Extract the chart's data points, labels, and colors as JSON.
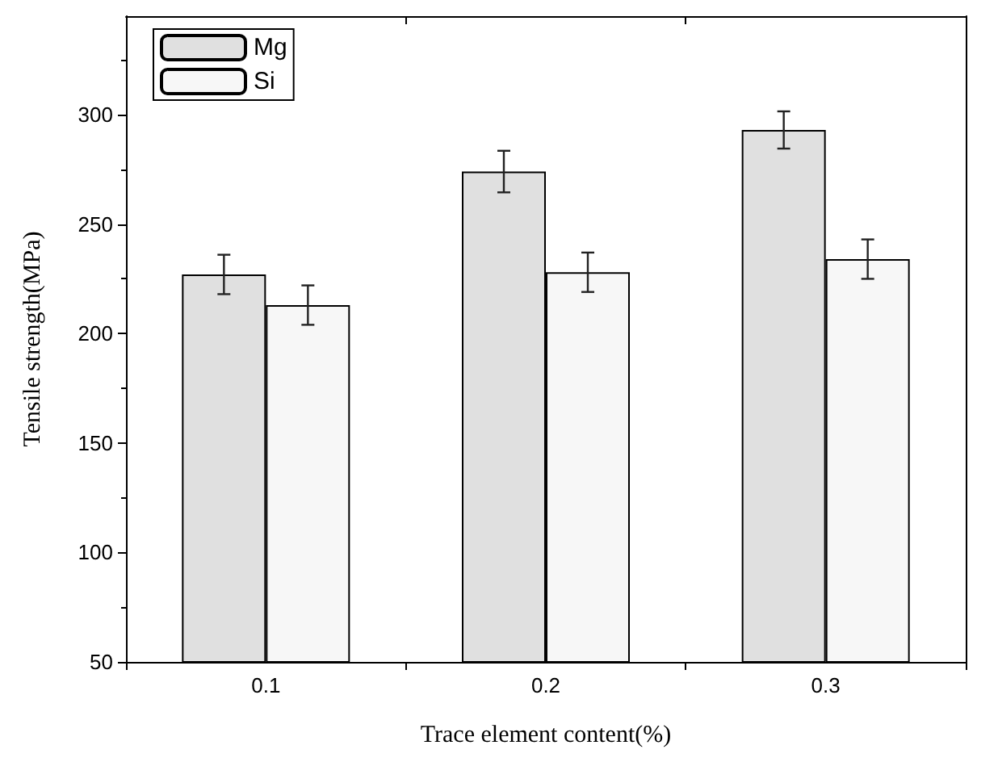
{
  "chart_data": {
    "type": "bar",
    "xlabel": "Trace element content(%)",
    "ylabel": "Tensile strength(MPa)",
    "categories": [
      "0.1",
      "0.2",
      "0.3"
    ],
    "series": [
      {
        "name": "Mg",
        "color": "#e0e0e0",
        "values": [
          227,
          274,
          293
        ],
        "errors": [
          9,
          9.5,
          8.5
        ]
      },
      {
        "name": "Si",
        "color": "#f7f7f7",
        "values": [
          213,
          228,
          234
        ],
        "errors": [
          9,
          9,
          9
        ]
      }
    ],
    "ylim": [
      50,
      345
    ],
    "yticks": [
      50,
      100,
      150,
      200,
      250,
      300
    ],
    "grid": false,
    "legend": "top left"
  }
}
